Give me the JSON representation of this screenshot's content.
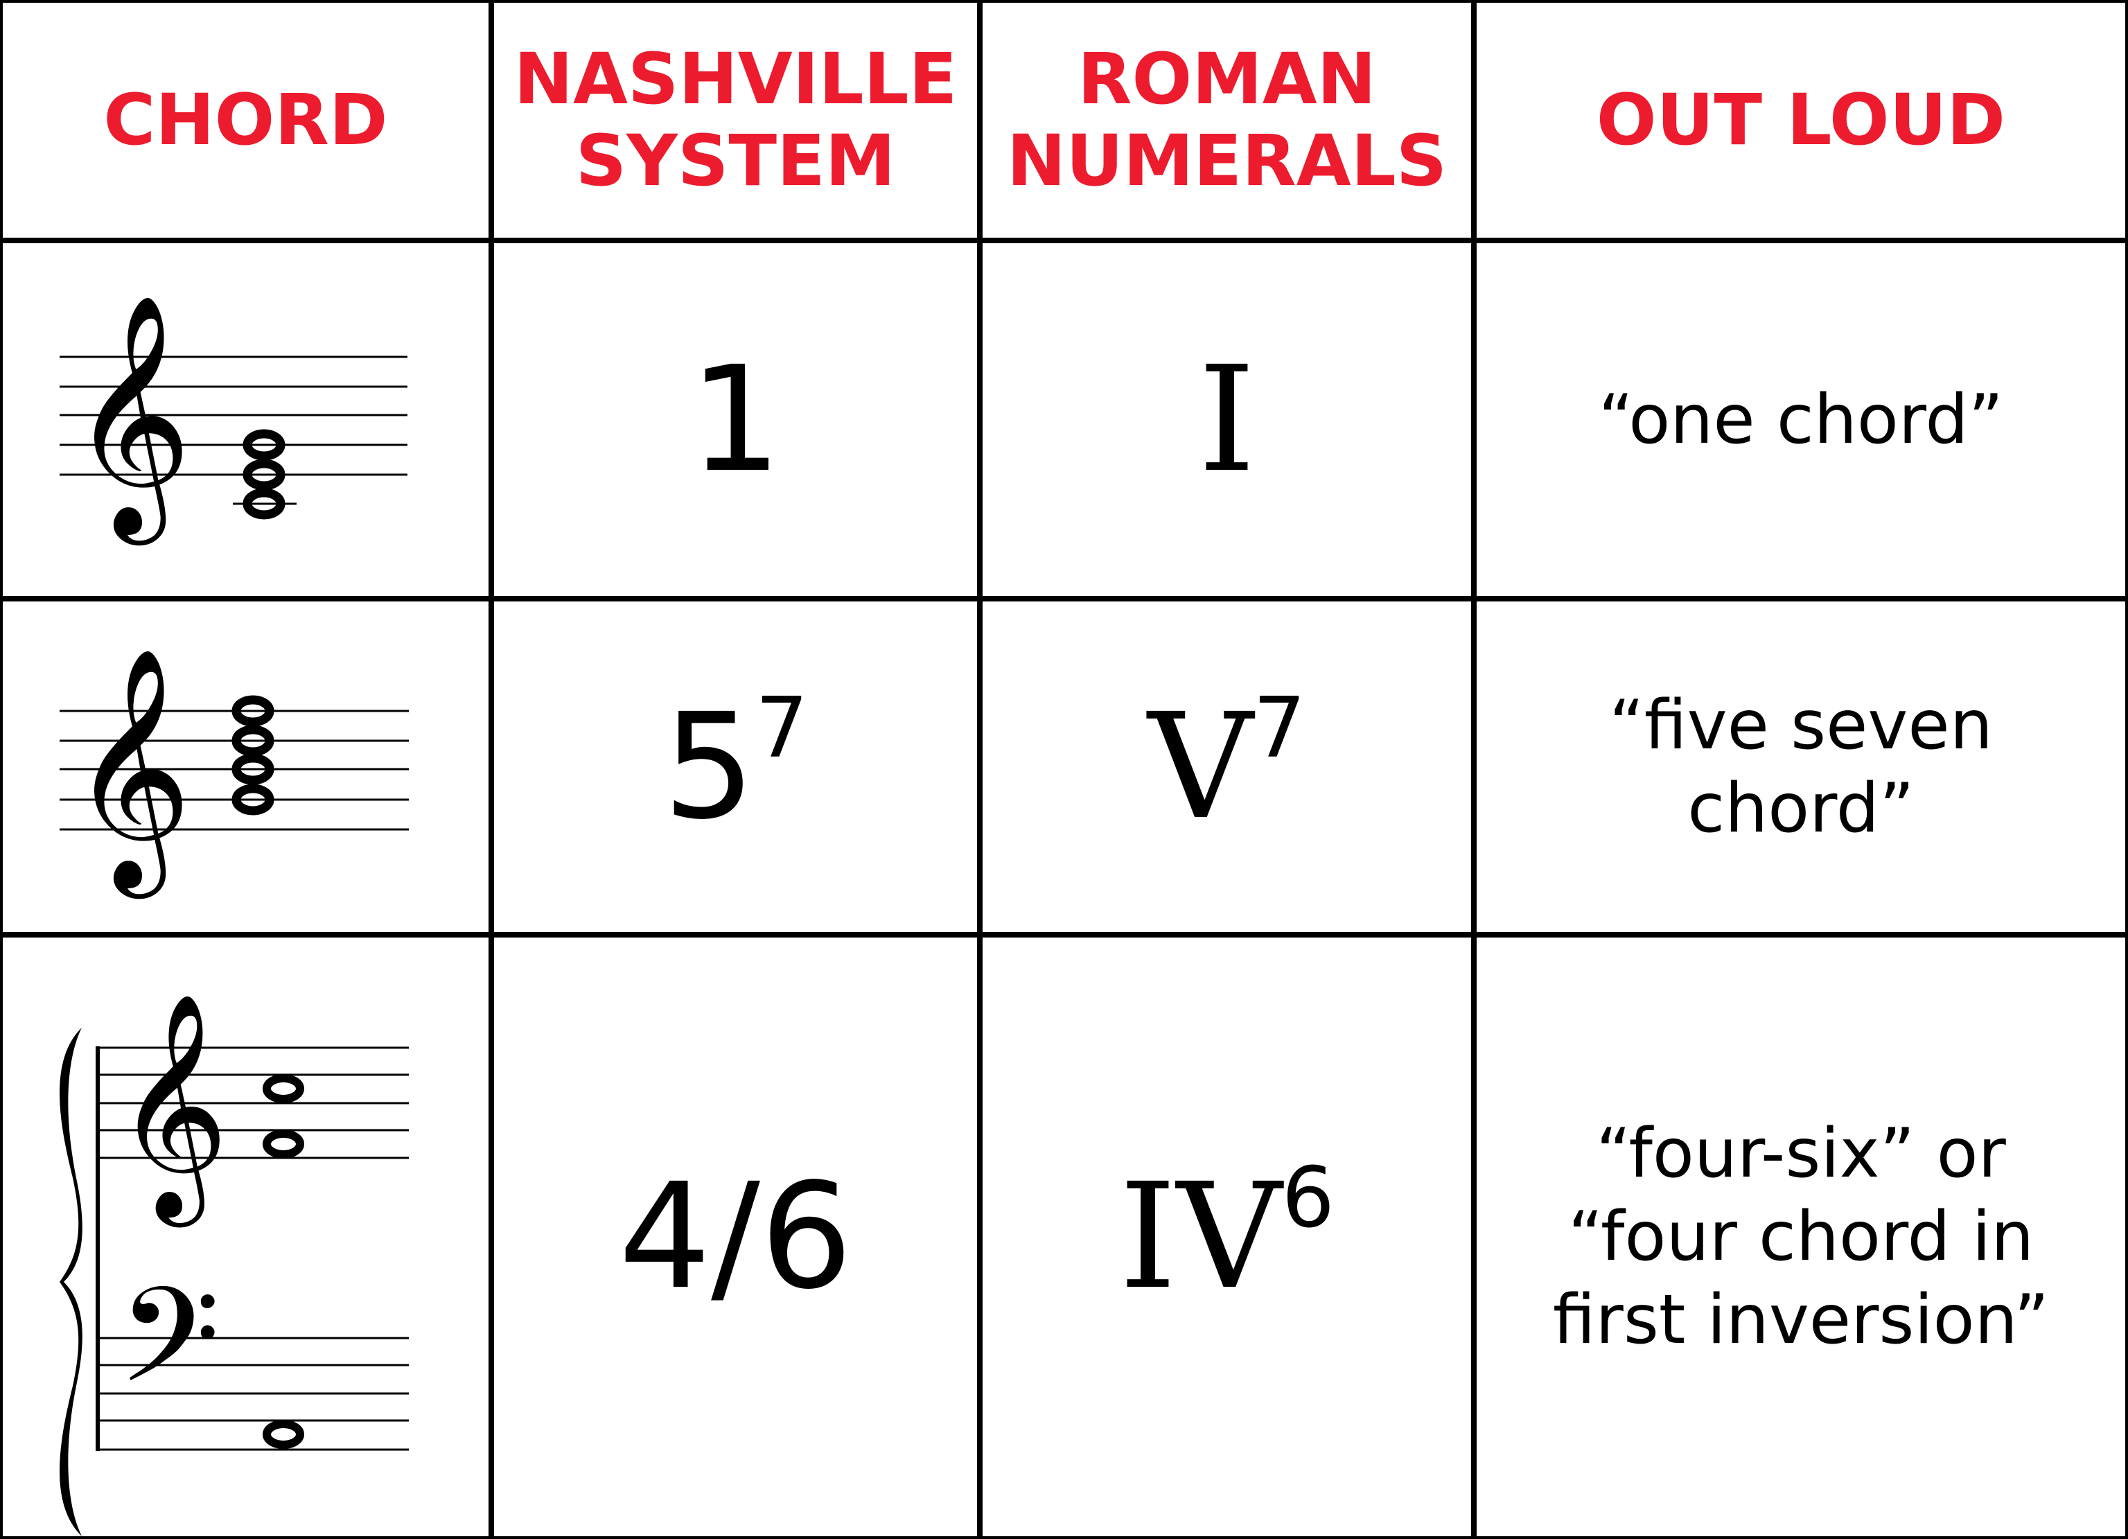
{
  "headers": {
    "chord": "CHORD",
    "nashville_1": "NASHVILLE",
    "nashville_2": "SYSTEM",
    "roman_1": "ROMAN",
    "roman_2": "NUMERALS",
    "out_loud": "OUT LOUD"
  },
  "accent_color": "#ec1c2e",
  "rows": [
    {
      "chord": "treble clef, C major triad (C4 E4 G4)",
      "nashville": "1",
      "nashville_sup": "",
      "roman": "I",
      "roman_sup": "",
      "out_loud": [
        "“one chord”"
      ]
    },
    {
      "chord": "treble clef, G7 chord (G4 B4 D5 F5)",
      "nashville": "5",
      "nashville_sup": "7",
      "roman": "V",
      "roman_sup": "7",
      "out_loud": [
        "“five seven",
        "chord”"
      ]
    },
    {
      "chord": "grand staff, F major first inversion (A2, F4, C5)",
      "nashville": "4/6",
      "nashville_sup": "",
      "roman": "IV",
      "roman_sup": "6",
      "out_loud": [
        "“four-six” or",
        "“four chord in",
        "first inversion”"
      ]
    }
  ]
}
